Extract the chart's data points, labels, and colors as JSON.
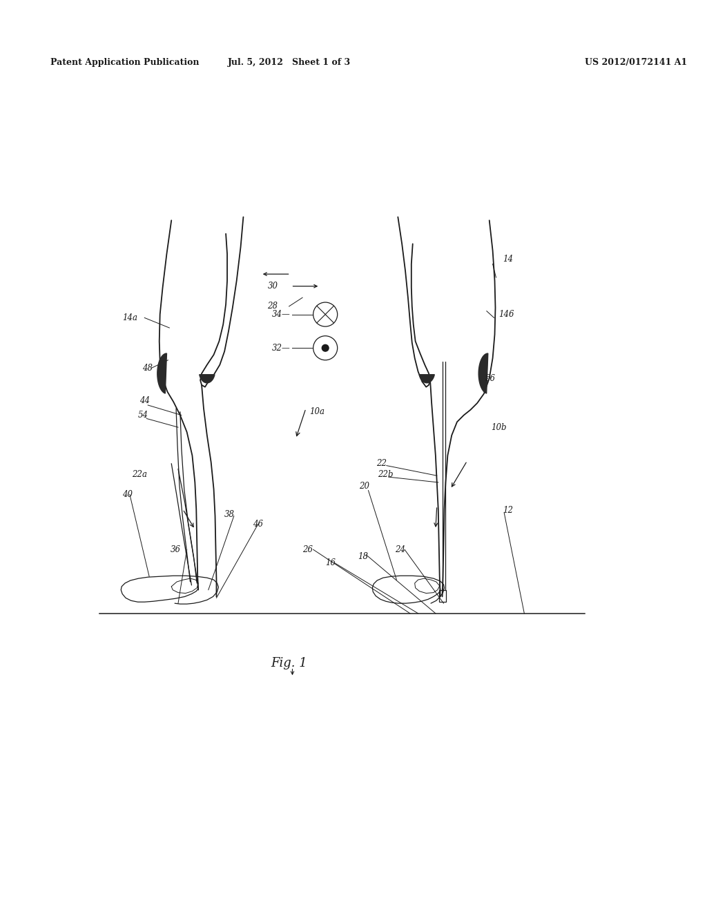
{
  "bg_color": "#ffffff",
  "header_left": "Patent Application Publication",
  "header_mid": "Jul. 5, 2012   Sheet 1 of 3",
  "header_right": "US 2012/0172141 A1",
  "fig_label": "Fig. 1"
}
